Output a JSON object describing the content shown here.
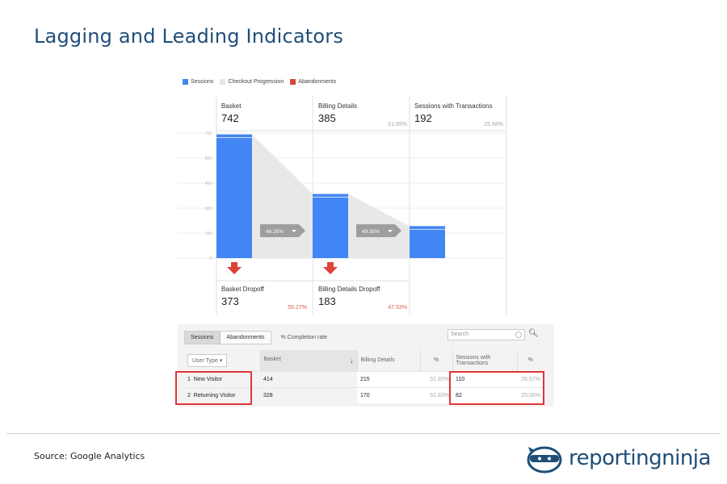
{
  "slide": {
    "title": "Lagging and Leading Indicators",
    "source": "Source: Google Analytics",
    "logo_text": "reportingninja"
  },
  "legend": [
    {
      "label": "Sessions",
      "color": "#4285f4"
    },
    {
      "label": "Checkout Progression",
      "color": "#e6e6e6"
    },
    {
      "label": "Abandonments",
      "color": "#db4437"
    }
  ],
  "chart_data": {
    "type": "bar",
    "categories": [
      "Basket",
      "Billing Details",
      "Sessions with Transactions"
    ],
    "values": [
      742,
      385,
      192
    ],
    "percent_of_previous": [
      "",
      "51.89%",
      "25.88%"
    ],
    "progression_labels": [
      "48.25%",
      "49.35%"
    ],
    "dropoffs": [
      {
        "label": "Basket Dropoff",
        "value": 373,
        "pct": "50.27%"
      },
      {
        "label": "Billing Details Dropoff",
        "value": 183,
        "pct": "47.53%"
      }
    ],
    "y_ticks": [
      "750",
      "600",
      "450",
      "300",
      "150",
      "0"
    ],
    "ylim": [
      0,
      750
    ]
  },
  "table": {
    "tabs": [
      "Sessions",
      "Abandonments"
    ],
    "completion_label": "% Completion rate",
    "search_placeholder": "Search",
    "headers": [
      "User Type",
      "Basket",
      "Billing Details",
      "%",
      "Sessions with Transactions",
      "%"
    ],
    "rows": [
      {
        "idx": "1",
        "type": "New Visitor",
        "basket": "414",
        "billing": "215",
        "billing_pct": "51.93%",
        "trans": "110",
        "trans_pct": "26.57%"
      },
      {
        "idx": "2",
        "type": "Returning Visitor",
        "basket": "328",
        "billing": "170",
        "billing_pct": "51.83%",
        "trans": "82",
        "trans_pct": "25.00%"
      }
    ]
  }
}
